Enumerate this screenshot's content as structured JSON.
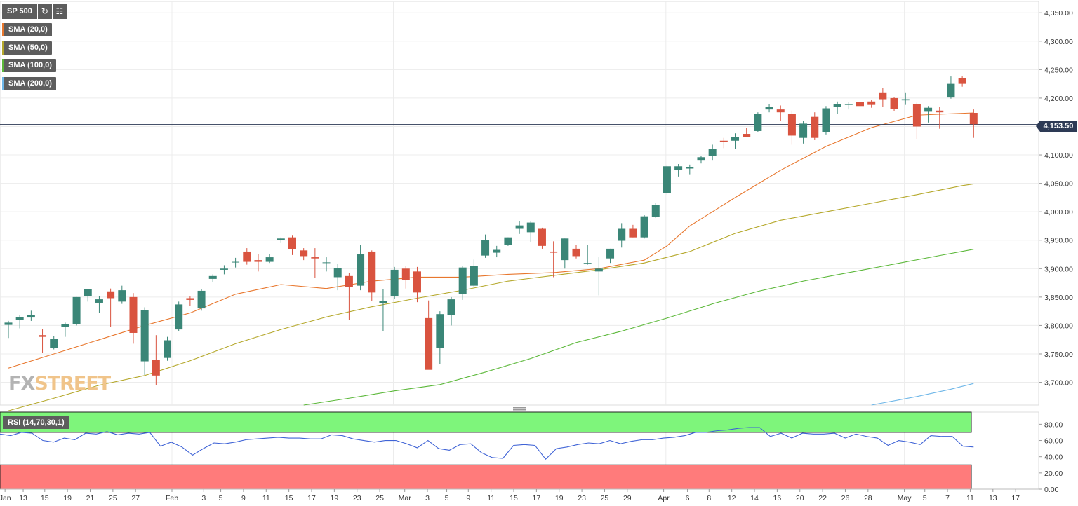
{
  "symbol": "SP 500",
  "toolbar": {
    "refresh_icon": "refresh-icon",
    "calendar_icon": "calendar-icon"
  },
  "indicators": [
    {
      "label": "SMA (20,0)",
      "color": "#e8772e"
    },
    {
      "label": "SMA (50,0)",
      "color": "#b5a82b"
    },
    {
      "label": "SMA (100,0)",
      "color": "#5cb83a"
    },
    {
      "label": "SMA (200,0)",
      "color": "#6fb7e8"
    }
  ],
  "rsi_label": "RSI (14,70,30,1)",
  "watermark": {
    "part1": "FX",
    "part2": "STREET"
  },
  "last_price": "4,153.50",
  "colors": {
    "up": "#3a8677",
    "down": "#d9533f",
    "price_line": "#2d3a55",
    "rsi_line": "#3f63d6",
    "overbought": "#7ef57b",
    "oversold": "#ff7b7b"
  },
  "chart_data": [
    {
      "type": "candlestick",
      "title": "",
      "ylim": [
        3660,
        4370
      ],
      "y_ticks": [
        "3,700.00",
        "3,750.00",
        "3,800.00",
        "3,850.00",
        "3,900.00",
        "3,950.00",
        "4,000.00",
        "4,050.00",
        "4,100.00",
        "4,150.00",
        "4,200.00",
        "4,250.00",
        "4,300.00",
        "4,350.00"
      ],
      "x_ticks": [
        "Jan",
        "13",
        "15",
        "19",
        "21",
        "25",
        "27",
        "Feb",
        "3",
        "5",
        "9",
        "11",
        "15",
        "17",
        "19",
        "23",
        "25",
        "Mar",
        "3",
        "5",
        "9",
        "11",
        "15",
        "17",
        "19",
        "23",
        "25",
        "29",
        "Apr",
        "6",
        "8",
        "12",
        "14",
        "16",
        "20",
        "22",
        "26",
        "28",
        "May",
        "5",
        "7",
        "11",
        "13",
        "17"
      ],
      "candles": [
        {
          "o": 3801,
          "h": 3808,
          "l": 3778,
          "c": 3805
        },
        {
          "o": 3810,
          "h": 3818,
          "l": 3795,
          "c": 3815
        },
        {
          "o": 3814,
          "h": 3826,
          "l": 3808,
          "c": 3818
        },
        {
          "o": 3783,
          "h": 3794,
          "l": 3752,
          "c": 3780
        },
        {
          "o": 3760,
          "h": 3782,
          "l": 3758,
          "c": 3776
        },
        {
          "o": 3798,
          "h": 3805,
          "l": 3780,
          "c": 3802
        },
        {
          "o": 3803,
          "h": 3850,
          "l": 3800,
          "c": 3850
        },
        {
          "o": 3852,
          "h": 3862,
          "l": 3842,
          "c": 3864
        },
        {
          "o": 3840,
          "h": 3852,
          "l": 3822,
          "c": 3846
        },
        {
          "o": 3860,
          "h": 3865,
          "l": 3798,
          "c": 3848
        },
        {
          "o": 3842,
          "h": 3870,
          "l": 3838,
          "c": 3862
        },
        {
          "o": 3850,
          "h": 3857,
          "l": 3768,
          "c": 3787
        },
        {
          "o": 3737,
          "h": 3832,
          "l": 3713,
          "c": 3827
        },
        {
          "o": 3740,
          "h": 3783,
          "l": 3695,
          "c": 3712
        },
        {
          "o": 3743,
          "h": 3780,
          "l": 3738,
          "c": 3774
        },
        {
          "o": 3793,
          "h": 3842,
          "l": 3790,
          "c": 3837
        },
        {
          "o": 3848,
          "h": 3851,
          "l": 3834,
          "c": 3845
        },
        {
          "o": 3830,
          "h": 3864,
          "l": 3826,
          "c": 3861
        },
        {
          "o": 3882,
          "h": 3890,
          "l": 3876,
          "c": 3887
        },
        {
          "o": 3898,
          "h": 3906,
          "l": 3890,
          "c": 3900
        },
        {
          "o": 3912,
          "h": 3919,
          "l": 3902,
          "c": 3912
        },
        {
          "o": 3930,
          "h": 3936,
          "l": 3907,
          "c": 3912
        },
        {
          "o": 3915,
          "h": 3925,
          "l": 3895,
          "c": 3912
        },
        {
          "o": 3912,
          "h": 3926,
          "l": 3910,
          "c": 3920
        },
        {
          "o": 3950,
          "h": 3955,
          "l": 3945,
          "c": 3953
        },
        {
          "o": 3955,
          "h": 3958,
          "l": 3924,
          "c": 3934
        },
        {
          "o": 3932,
          "h": 3936,
          "l": 3915,
          "c": 3922
        },
        {
          "o": 3920,
          "h": 3936,
          "l": 3884,
          "c": 3918
        },
        {
          "o": 3911,
          "h": 3920,
          "l": 3895,
          "c": 3911
        },
        {
          "o": 3885,
          "h": 3908,
          "l": 3862,
          "c": 3901
        },
        {
          "o": 3887,
          "h": 3893,
          "l": 3810,
          "c": 3868
        },
        {
          "o": 3870,
          "h": 3942,
          "l": 3862,
          "c": 3925
        },
        {
          "o": 3930,
          "h": 3932,
          "l": 3843,
          "c": 3858
        },
        {
          "o": 3839,
          "h": 3864,
          "l": 3790,
          "c": 3843
        },
        {
          "o": 3852,
          "h": 3903,
          "l": 3847,
          "c": 3898
        },
        {
          "o": 3900,
          "h": 3905,
          "l": 3865,
          "c": 3880
        },
        {
          "o": 3895,
          "h": 3903,
          "l": 3841,
          "c": 3858
        },
        {
          "o": 3813,
          "h": 3844,
          "l": 3723,
          "c": 3722
        },
        {
          "o": 3760,
          "h": 3825,
          "l": 3732,
          "c": 3820
        },
        {
          "o": 3818,
          "h": 3850,
          "l": 3800,
          "c": 3846
        },
        {
          "o": 3855,
          "h": 3905,
          "l": 3845,
          "c": 3902
        },
        {
          "o": 3870,
          "h": 3916,
          "l": 3868,
          "c": 3905
        },
        {
          "o": 3923,
          "h": 3960,
          "l": 3919,
          "c": 3950
        },
        {
          "o": 3928,
          "h": 3940,
          "l": 3920,
          "c": 3933
        },
        {
          "o": 3942,
          "h": 3955,
          "l": 3940,
          "c": 3955
        },
        {
          "o": 3970,
          "h": 3983,
          "l": 3961,
          "c": 3976
        },
        {
          "o": 3964,
          "h": 3984,
          "l": 3947,
          "c": 3981
        },
        {
          "o": 3970,
          "h": 3972,
          "l": 3935,
          "c": 3940
        },
        {
          "o": 3930,
          "h": 3948,
          "l": 3885,
          "c": 3928
        },
        {
          "o": 3915,
          "h": 3953,
          "l": 3900,
          "c": 3953
        },
        {
          "o": 3935,
          "h": 3942,
          "l": 3918,
          "c": 3922
        },
        {
          "o": 3910,
          "h": 3942,
          "l": 3907,
          "c": 3910
        },
        {
          "o": 3895,
          "h": 3920,
          "l": 3853,
          "c": 3900
        },
        {
          "o": 3918,
          "h": 3935,
          "l": 3910,
          "c": 3935
        },
        {
          "o": 3949,
          "h": 3980,
          "l": 3937,
          "c": 3970
        },
        {
          "o": 3970,
          "h": 3977,
          "l": 3955,
          "c": 3955
        },
        {
          "o": 3955,
          "h": 3994,
          "l": 3953,
          "c": 3992
        },
        {
          "o": 3991,
          "h": 4015,
          "l": 3989,
          "c": 4012
        },
        {
          "o": 4033,
          "h": 4083,
          "l": 4030,
          "c": 4080
        },
        {
          "o": 4073,
          "h": 4084,
          "l": 4062,
          "c": 4080
        },
        {
          "o": 4076,
          "h": 4083,
          "l": 4066,
          "c": 4078
        },
        {
          "o": 4090,
          "h": 4098,
          "l": 4085,
          "c": 4096
        },
        {
          "o": 4098,
          "h": 4118,
          "l": 4090,
          "c": 4110
        },
        {
          "o": 4125,
          "h": 4130,
          "l": 4112,
          "c": 4123
        },
        {
          "o": 4125,
          "h": 4138,
          "l": 4110,
          "c": 4132
        },
        {
          "o": 4137,
          "h": 4148,
          "l": 4131,
          "c": 4132
        },
        {
          "o": 4142,
          "h": 4175,
          "l": 4140,
          "c": 4172
        },
        {
          "o": 4180,
          "h": 4190,
          "l": 4175,
          "c": 4185
        },
        {
          "o": 4180,
          "h": 4187,
          "l": 4160,
          "c": 4175
        },
        {
          "o": 4172,
          "h": 4178,
          "l": 4118,
          "c": 4134
        },
        {
          "o": 4130,
          "h": 4160,
          "l": 4120,
          "c": 4155
        },
        {
          "o": 4167,
          "h": 4175,
          "l": 4126,
          "c": 4130
        },
        {
          "o": 4140,
          "h": 4186,
          "l": 4136,
          "c": 4182
        },
        {
          "o": 4184,
          "h": 4194,
          "l": 4172,
          "c": 4189
        },
        {
          "o": 4188,
          "h": 4193,
          "l": 4180,
          "c": 4190
        },
        {
          "o": 4193,
          "h": 4196,
          "l": 4183,
          "c": 4186
        },
        {
          "o": 4194,
          "h": 4197,
          "l": 4183,
          "c": 4188
        },
        {
          "o": 4210,
          "h": 4218,
          "l": 4185,
          "c": 4198
        },
        {
          "o": 4200,
          "h": 4202,
          "l": 4177,
          "c": 4181
        },
        {
          "o": 4196,
          "h": 4210,
          "l": 4188,
          "c": 4198
        },
        {
          "o": 4190,
          "h": 4192,
          "l": 4128,
          "c": 4150
        },
        {
          "o": 4176,
          "h": 4186,
          "l": 4157,
          "c": 4183
        },
        {
          "o": 4178,
          "h": 4185,
          "l": 4146,
          "c": 4175
        },
        {
          "o": 4201,
          "h": 4238,
          "l": 4199,
          "c": 4225
        },
        {
          "o": 4235,
          "h": 4238,
          "l": 4220,
          "c": 4225
        },
        {
          "o": 4174,
          "h": 4180,
          "l": 4130,
          "c": 4154
        }
      ],
      "sma": [
        {
          "name": "SMA (20,0)",
          "color": "#e8772e",
          "x": [
            0,
            4,
            8,
            12,
            16,
            20,
            24,
            28,
            32,
            36,
            40,
            44,
            48,
            52,
            56,
            58,
            60,
            64,
            68,
            72,
            76,
            80,
            85
          ],
          "y": [
            3725,
            3750,
            3775,
            3800,
            3822,
            3855,
            3872,
            3865,
            3878,
            3885,
            3885,
            3890,
            3893,
            3900,
            3915,
            3940,
            3975,
            4025,
            4073,
            4115,
            4148,
            4170,
            4174
          ]
        },
        {
          "name": "SMA (50,0)",
          "color": "#b5a82b",
          "x": [
            0,
            4,
            8,
            12,
            16,
            20,
            24,
            28,
            32,
            36,
            40,
            44,
            48,
            52,
            56,
            60,
            64,
            68,
            72,
            76,
            80,
            84,
            85
          ],
          "y": [
            3650,
            3672,
            3695,
            3712,
            3738,
            3768,
            3793,
            3815,
            3833,
            3848,
            3862,
            3878,
            3888,
            3898,
            3910,
            3930,
            3962,
            3985,
            4000,
            4015,
            4030,
            4046,
            4049
          ]
        },
        {
          "name": "SMA (100,0)",
          "color": "#5cb83a",
          "x": [
            26,
            30,
            34,
            38,
            42,
            46,
            50,
            54,
            58,
            62,
            66,
            70,
            74,
            78,
            82,
            85
          ],
          "y": [
            3660,
            3672,
            3685,
            3696,
            3718,
            3742,
            3770,
            3790,
            3813,
            3838,
            3860,
            3878,
            3893,
            3908,
            3923,
            3934
          ]
        },
        {
          "name": "SMA (200,0)",
          "color": "#6fb7e8",
          "x": [
            76,
            80,
            83,
            85
          ],
          "y": [
            3660,
            3675,
            3688,
            3698
          ]
        }
      ]
    },
    {
      "type": "line",
      "title": "",
      "ylim": [
        0,
        95
      ],
      "y_ticks": [
        "80.00",
        "60.00",
        "40.00",
        "20.00",
        "0.00"
      ],
      "overbought": 70,
      "oversold": 30,
      "values": [
        68,
        66,
        70,
        69,
        60,
        58,
        63,
        61,
        69,
        68,
        71,
        67,
        69,
        68,
        70,
        53,
        58,
        52,
        42,
        50,
        57,
        56,
        58,
        61,
        62,
        63,
        64,
        63,
        63,
        62,
        62,
        67,
        66,
        62,
        60,
        58,
        60,
        60,
        56,
        51,
        60,
        50,
        48,
        55,
        56,
        45,
        39,
        38,
        54,
        55,
        54,
        37,
        50,
        52,
        55,
        57,
        56,
        60,
        56,
        59,
        61,
        61,
        63,
        64,
        66,
        70,
        70,
        72,
        73,
        75,
        76,
        76,
        65,
        69,
        63,
        69,
        68,
        68,
        69,
        63,
        68,
        65,
        63,
        54,
        60,
        58,
        55,
        66,
        65,
        65,
        53,
        52
      ]
    }
  ]
}
